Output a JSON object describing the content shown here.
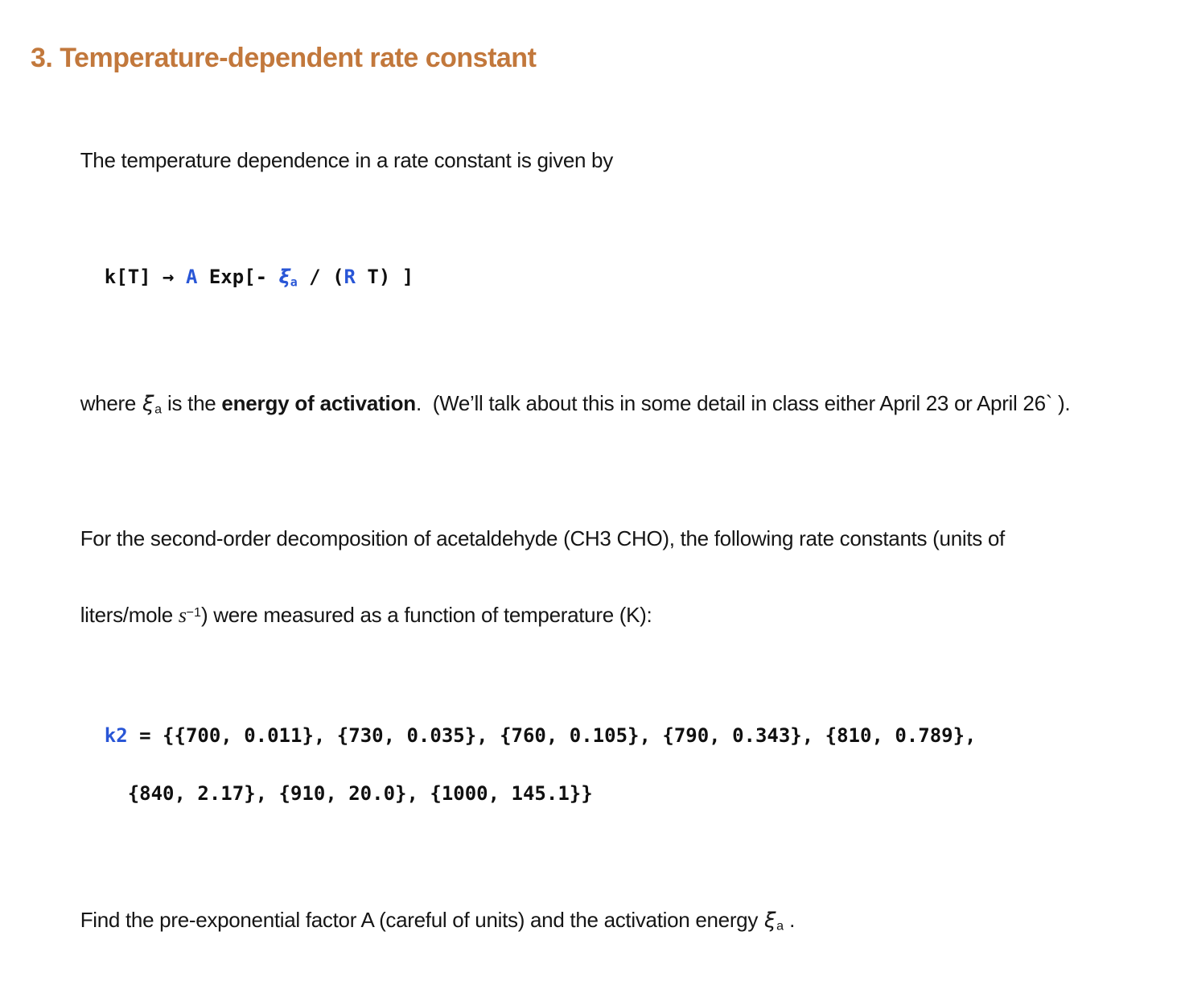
{
  "colors": {
    "background": "#ffffff",
    "heading_orange": "#c2783c",
    "symbol_blue": "#2956d6",
    "body_text": "#151515"
  },
  "heading": {
    "text": "3. Temperature-dependent rate constant"
  },
  "para_intro": {
    "text": "The temperature dependence in a rate constant is given by"
  },
  "code_rate": {
    "lhs": "k[T] ",
    "arrow": "→ ",
    "sym_A": "A",
    "exp_open": " Exp[- ",
    "sym_E": "ξ",
    "sym_E_sub": "a",
    "divider": " / (",
    "sym_R": "R",
    "close": " T) ]"
  },
  "para_where": {
    "prefix": "where ",
    "sym": "ξ",
    "sym_sub": "a",
    "mid": " is the ",
    "bold": "energy of activation",
    "suffix": ".  (We’ll talk about this in some detail in class either April 23 or April 26` )."
  },
  "para_rates": {
    "line1": "For the second-order decomposition of acetaldehyde (CH3 CHO), the following rate constants (units of",
    "line2_pre": "liters/mole ",
    "italic_s": "s",
    "superscript": "−1",
    "line2_post": ") were measured as a function of temperature (K):"
  },
  "code_k2": {
    "sym": "k2",
    "line1": " = {{700, 0.011}, {730, 0.035}, {760, 0.105}, {790, 0.343}, {810, 0.789},",
    "line2": "  {840, 2.17}, {910, 20.0}, {1000, 145.1}}"
  },
  "para_find": {
    "prefix": "Find the pre-exponential factor A (careful of units) and the activation energy ",
    "sym": "ξ",
    "sym_sub": "a",
    "suffix": " ."
  },
  "dataset": {
    "temperature_K": [
      700,
      730,
      760,
      790,
      810,
      840,
      910,
      1000
    ],
    "k2_values": [
      0.011,
      0.035,
      0.105,
      0.343,
      0.789,
      2.17,
      20.0,
      145.1
    ]
  }
}
